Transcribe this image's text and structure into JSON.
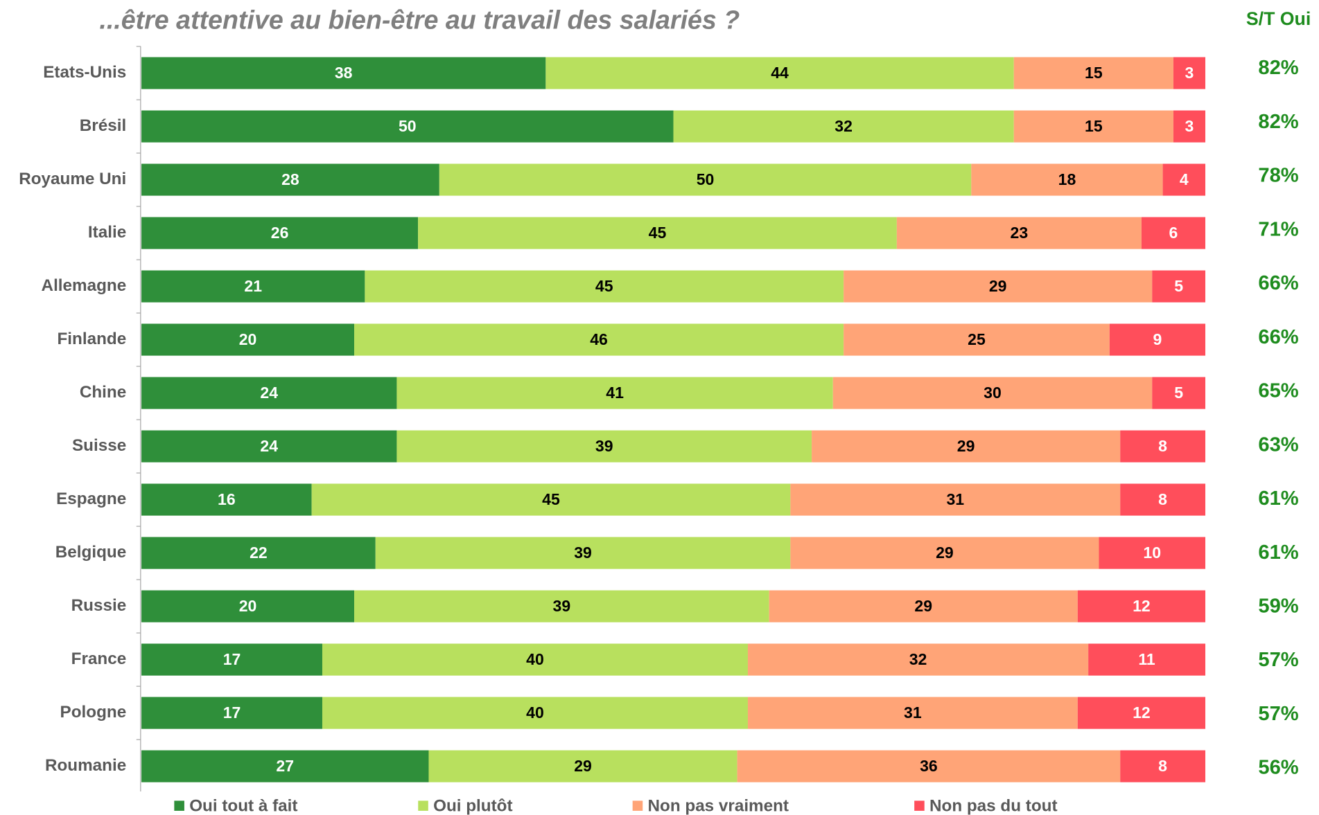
{
  "chart_data": {
    "type": "stacked-bar-horizontal",
    "title": "...être attentive au bien-être au travail des salariés ?",
    "categories": [
      "Etats-Unis",
      "Brésil",
      "Royaume Uni",
      "Italie",
      "Allemagne",
      "Finlande",
      "Chine",
      "Suisse",
      "Espagne",
      "Belgique",
      "Russie",
      "France",
      "Pologne",
      "Roumanie"
    ],
    "series": [
      {
        "name": "Oui tout à fait",
        "color": "#2f8f3a",
        "values": [
          38,
          50,
          28,
          26,
          21,
          20,
          24,
          24,
          16,
          22,
          20,
          17,
          17,
          27
        ]
      },
      {
        "name": "Oui plutôt",
        "color": "#b8e05e",
        "values": [
          44,
          32,
          50,
          45,
          45,
          46,
          41,
          39,
          45,
          39,
          39,
          40,
          40,
          29
        ]
      },
      {
        "name": "Non pas vraiment",
        "color": "#ffa477",
        "values": [
          15,
          15,
          18,
          23,
          29,
          25,
          30,
          29,
          31,
          29,
          29,
          32,
          31,
          36
        ]
      },
      {
        "name": "Non pas du tout",
        "color": "#ff4e5b",
        "values": [
          3,
          3,
          4,
          6,
          5,
          9,
          5,
          8,
          8,
          10,
          12,
          11,
          12,
          8
        ]
      }
    ],
    "totals": {
      "title": "S/T Oui",
      "color": "#1e8c1e",
      "values": [
        82,
        82,
        78,
        71,
        66,
        66,
        65,
        63,
        61,
        61,
        59,
        57,
        57,
        56
      ],
      "value_labels": [
        "82%",
        "82%",
        "78%",
        "71%",
        "66%",
        "66%",
        "65%",
        "63%",
        "61%",
        "61%",
        "59%",
        "57%",
        "57%",
        "56%"
      ]
    },
    "xlim": [
      0,
      100
    ]
  }
}
